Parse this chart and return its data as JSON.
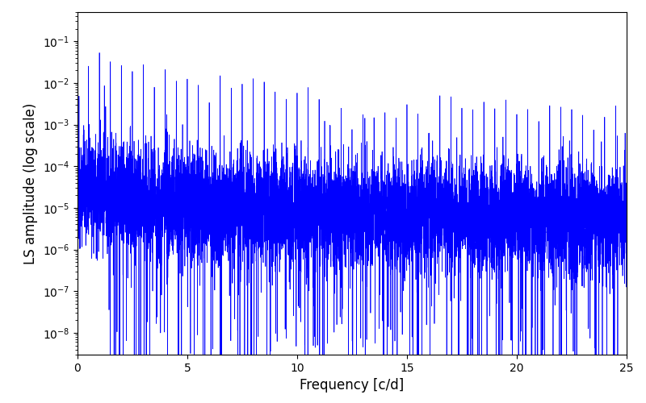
{
  "xlabel": "Frequency [c/d]",
  "ylabel": "LS amplitude (log scale)",
  "xlim": [
    0,
    25
  ],
  "ylim": [
    3e-09,
    0.5
  ],
  "line_color": "#0000ff",
  "background_color": "#ffffff",
  "seed": 12345,
  "n_points": 8000,
  "freq_max": 25.0,
  "line_width": 0.5
}
